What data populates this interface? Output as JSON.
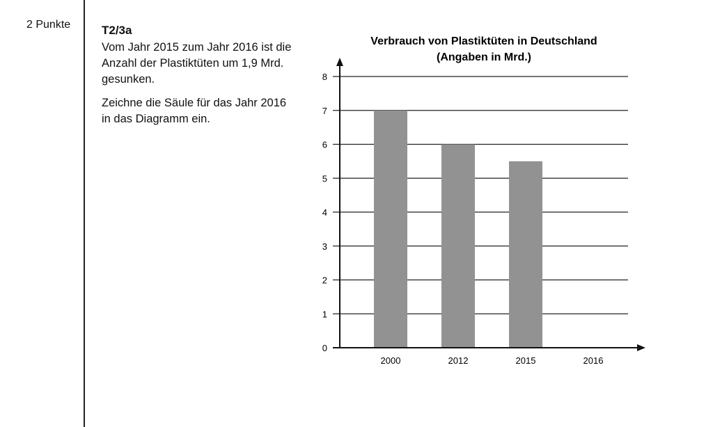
{
  "margin": {
    "points": "2 Punkte"
  },
  "task": {
    "id": "T2/3a",
    "paragraphs": [
      "Vom Jahr 2015 zum Jahr 2016 ist die Anzahl der Plastiktüten um 1,9 Mrd. gesunken.",
      "Zeichne die Säule für das Jahr 2016 in das Diagramm ein."
    ]
  },
  "chart_data": {
    "type": "bar",
    "title": "Verbrauch von Plastiktüten in Deutschland",
    "subtitle": "(Angaben in Mrd.)",
    "categories": [
      "2000",
      "2012",
      "2015",
      "2016"
    ],
    "values": [
      7,
      6,
      5.5,
      null
    ],
    "yticks": [
      "0",
      "1",
      "2",
      "3",
      "4",
      "5",
      "6",
      "7",
      "8"
    ],
    "ylim": [
      0,
      8
    ],
    "xlabel": "",
    "ylabel": "",
    "grid": true,
    "bar_color": "#929292"
  }
}
